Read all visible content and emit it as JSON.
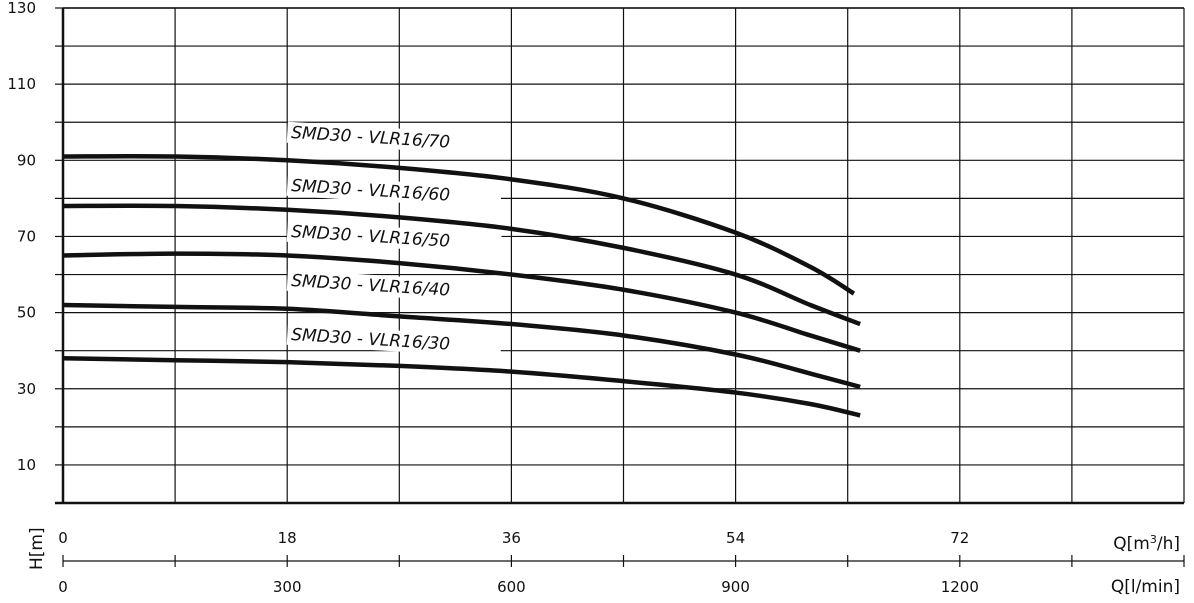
{
  "chart_data": {
    "type": "line",
    "ylabel": "H[m]",
    "xlabel_primary": "Q[m³/h]",
    "xlabel_secondary": "Q[l/min]",
    "ylim": [
      0,
      130
    ],
    "xlim": [
      0,
      90
    ],
    "grid": true,
    "y_ticks": [
      {
        "value": 10,
        "label": "10"
      },
      {
        "value": 30,
        "label": "30"
      },
      {
        "value": 50,
        "label": "50"
      },
      {
        "value": 70,
        "label": "70"
      },
      {
        "value": 90,
        "label": "90"
      },
      {
        "value": 110,
        "label": "110"
      },
      {
        "value": 130,
        "label": "130"
      }
    ],
    "x_ticks_primary": [
      {
        "value": 0,
        "label": "0"
      },
      {
        "value": 18,
        "label": "18"
      },
      {
        "value": 36,
        "label": "36"
      },
      {
        "value": 54,
        "label": "54"
      },
      {
        "value": 72,
        "label": "72"
      }
    ],
    "x_ticks_secondary": [
      {
        "value": 0,
        "label": "0"
      },
      {
        "value": 300,
        "label": "300"
      },
      {
        "value": 600,
        "label": "600"
      },
      {
        "value": 900,
        "label": "900"
      },
      {
        "value": 1200,
        "label": "1200"
      }
    ],
    "series": [
      {
        "name": "SMD30 - VLR16/70",
        "x": [
          0,
          9,
          18,
          27,
          36,
          45,
          54,
          60,
          63.5
        ],
        "y": [
          91,
          91,
          90,
          88,
          85,
          80,
          71,
          62,
          55
        ]
      },
      {
        "name": "SMD30 - VLR16/60",
        "x": [
          0,
          9,
          18,
          27,
          36,
          45,
          54,
          60,
          64
        ],
        "y": [
          78,
          78,
          77,
          75,
          72,
          67,
          60,
          52,
          47
        ]
      },
      {
        "name": "SMD30 - VLR16/50",
        "x": [
          0,
          9,
          18,
          27,
          36,
          45,
          54,
          60,
          64
        ],
        "y": [
          65,
          65.5,
          65,
          63,
          60,
          56,
          50,
          44,
          40
        ]
      },
      {
        "name": "SMD30 - VLR16/40",
        "x": [
          0,
          9,
          18,
          27,
          36,
          45,
          54,
          60,
          64
        ],
        "y": [
          52,
          51.5,
          51,
          49,
          47,
          44,
          39,
          34,
          30.5
        ]
      },
      {
        "name": "SMD30 - VLR16/30",
        "x": [
          0,
          9,
          18,
          27,
          36,
          45,
          54,
          60,
          64
        ],
        "y": [
          38,
          37.5,
          37,
          36,
          34.5,
          32,
          29,
          26,
          23
        ]
      }
    ]
  }
}
